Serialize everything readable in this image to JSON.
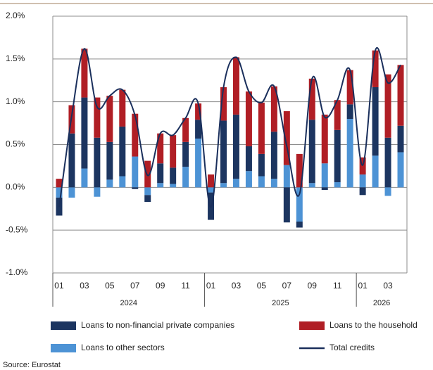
{
  "chart_data": {
    "type": "bar",
    "stacked": true,
    "categories": [
      "01",
      null,
      "03",
      null,
      "05",
      null,
      "07",
      null,
      "09",
      null,
      "11",
      null,
      "01",
      null,
      "03",
      null,
      "05",
      null,
      "07",
      null,
      "09",
      null,
      "11",
      null,
      "01",
      null,
      "03",
      null
    ],
    "groups": [
      {
        "label": "2024",
        "size": 12
      },
      {
        "label": "2025",
        "size": 12
      },
      {
        "label": "2026",
        "size": 4
      }
    ],
    "series": [
      {
        "name": "Loans to non-financial private companies",
        "color": "#1c3560",
        "type": "bar",
        "values": [
          -0.21,
          0.63,
          0.83,
          0.58,
          0.44,
          0.58,
          -0.02,
          -0.08,
          0.23,
          0.19,
          0.29,
          0.22,
          -0.32,
          0.73,
          0.75,
          0.29,
          0.26,
          0.55,
          -0.41,
          -0.07,
          0.74,
          -0.03,
          0.61,
          0.17,
          -0.09,
          0.8,
          0.58,
          0.31
        ]
      },
      {
        "name": "Loans to the household",
        "color": "#b01e25",
        "type": "bar",
        "values": [
          0.1,
          0.33,
          0.57,
          0.47,
          0.54,
          0.43,
          0.5,
          0.31,
          0.35,
          0.38,
          0.28,
          0.19,
          0.15,
          0.39,
          0.67,
          0.64,
          0.6,
          0.53,
          0.63,
          0.39,
          0.48,
          0.57,
          0.35,
          0.4,
          0.2,
          0.43,
          0.74,
          0.71
        ]
      },
      {
        "name": "Loans to other sectors",
        "color": "#4d93d5",
        "type": "bar",
        "values": [
          -0.12,
          -0.12,
          0.22,
          -0.11,
          0.09,
          0.13,
          0.36,
          -0.09,
          0.05,
          0.04,
          0.24,
          0.57,
          -0.06,
          0.05,
          0.1,
          0.19,
          0.13,
          0.1,
          0.26,
          -0.4,
          0.05,
          0.28,
          0.06,
          0.8,
          0.15,
          0.37,
          -0.1,
          0.41
        ]
      },
      {
        "name": "Total credits",
        "color": "#1a2f5c",
        "type": "line",
        "values": [
          -0.23,
          0.84,
          1.62,
          0.94,
          1.07,
          1.14,
          0.84,
          0.14,
          0.63,
          0.61,
          0.81,
          0.98,
          -0.23,
          1.17,
          1.52,
          1.12,
          0.99,
          1.18,
          0.48,
          -0.08,
          1.27,
          0.82,
          1.02,
          1.37,
          0.26,
          1.6,
          1.22,
          1.43
        ]
      }
    ],
    "ylim": [
      -1,
      2
    ],
    "yticks": [
      {
        "value": -1,
        "label": "-1.0%"
      },
      {
        "value": -0.5,
        "label": "-0.5%"
      },
      {
        "value": 0,
        "label": "0.0%"
      },
      {
        "value": 0.5,
        "label": "0.5%"
      },
      {
        "value": 1,
        "label": "1.0%"
      },
      {
        "value": 1.5,
        "label": "1.5%"
      },
      {
        "value": 2,
        "label": "2.0%"
      }
    ],
    "grid": true,
    "source": "Source: Eurostat"
  }
}
